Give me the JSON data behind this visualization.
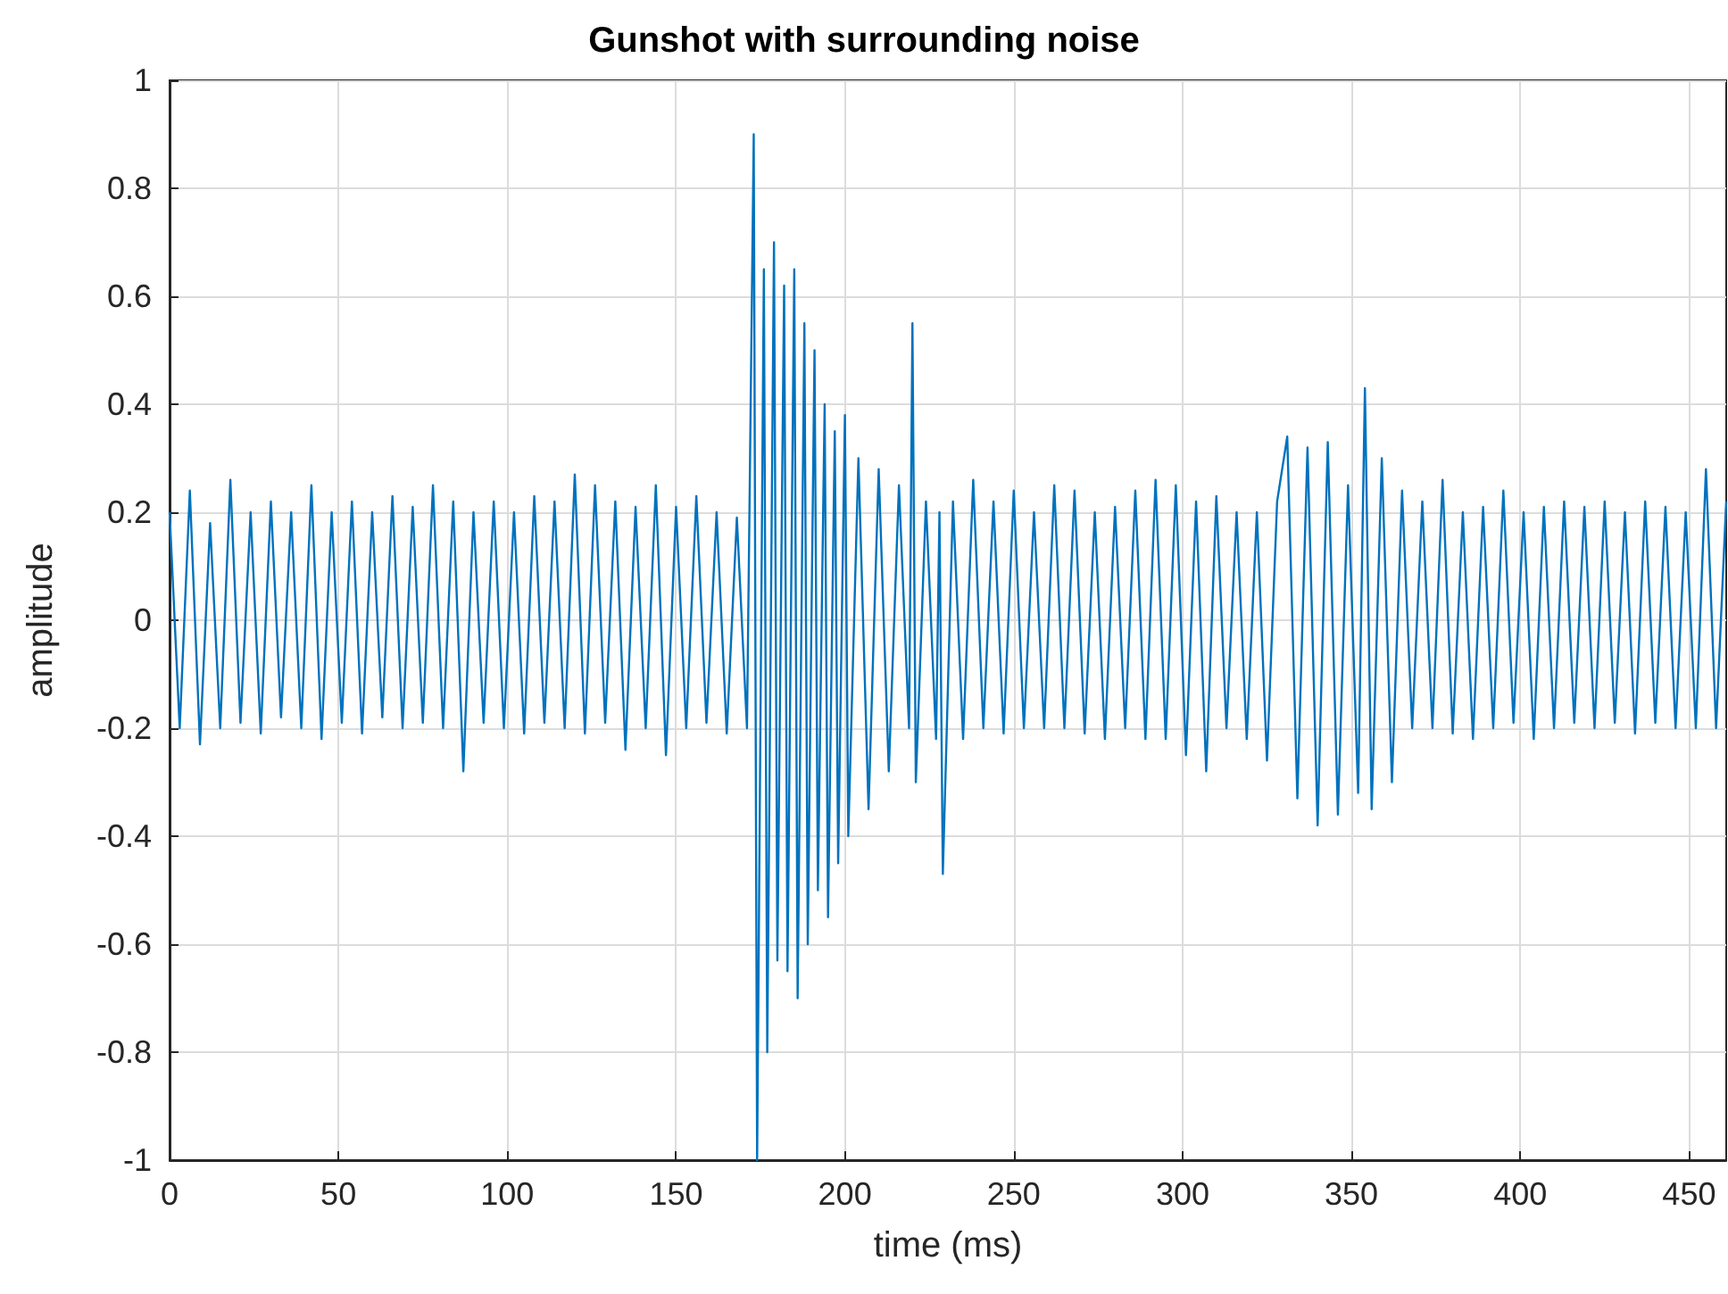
{
  "chart_data": {
    "type": "line",
    "title": "Gunshot with surrounding noise",
    "xlabel": "time (ms)",
    "ylabel": "amplitude",
    "xlim": [
      0,
      461
    ],
    "xticks": [
      0,
      50,
      100,
      150,
      200,
      250,
      300,
      350,
      400,
      450
    ],
    "ylim": [
      -1,
      1
    ],
    "yticks": [
      -1,
      -0.8,
      -0.6,
      -0.4,
      -0.2,
      0,
      0.2,
      0.4,
      0.6,
      0.8,
      1
    ],
    "grid": true,
    "series": [
      {
        "color": "#0072bd",
        "x": [
          0,
          3,
          6,
          9,
          12,
          15,
          18,
          21,
          24,
          27,
          30,
          33,
          36,
          39,
          42,
          45,
          48,
          51,
          54,
          57,
          60,
          63,
          66,
          69,
          72,
          75,
          78,
          81,
          84,
          87,
          90,
          93,
          96,
          99,
          102,
          105,
          108,
          111,
          114,
          117,
          120,
          123,
          126,
          129,
          132,
          135,
          138,
          141,
          144,
          147,
          150,
          153,
          156,
          159,
          162,
          165,
          168,
          171,
          173,
          174,
          176,
          177,
          179,
          180,
          182,
          183,
          185,
          186,
          188,
          189,
          191,
          192,
          194,
          195,
          197,
          198,
          200,
          201,
          204,
          207,
          210,
          213,
          216,
          219,
          220,
          221,
          224,
          227,
          228,
          229,
          232,
          235,
          238,
          241,
          244,
          247,
          250,
          253,
          256,
          259,
          262,
          265,
          268,
          271,
          274,
          277,
          280,
          283,
          286,
          289,
          292,
          295,
          298,
          301,
          304,
          307,
          310,
          313,
          316,
          319,
          322,
          325,
          328,
          331,
          334,
          337,
          340,
          343,
          346,
          349,
          352,
          354,
          356,
          359,
          362,
          365,
          368,
          371,
          374,
          377,
          380,
          383,
          386,
          389,
          392,
          395,
          398,
          401,
          404,
          407,
          410,
          413,
          416,
          419,
          422,
          425,
          428,
          431,
          434,
          437,
          440,
          443,
          446,
          449,
          452,
          455,
          458,
          461
        ],
        "values": [
          0.2,
          -0.2,
          0.24,
          -0.23,
          0.18,
          -0.2,
          0.26,
          -0.19,
          0.2,
          -0.21,
          0.22,
          -0.18,
          0.2,
          -0.2,
          0.25,
          -0.22,
          0.2,
          -0.19,
          0.22,
          -0.21,
          0.2,
          -0.18,
          0.23,
          -0.2,
          0.21,
          -0.19,
          0.25,
          -0.2,
          0.22,
          -0.28,
          0.2,
          -0.19,
          0.22,
          -0.2,
          0.2,
          -0.21,
          0.23,
          -0.19,
          0.22,
          -0.2,
          0.27,
          -0.21,
          0.25,
          -0.19,
          0.22,
          -0.24,
          0.21,
          -0.2,
          0.25,
          -0.25,
          0.21,
          -0.2,
          0.23,
          -0.19,
          0.2,
          -0.21,
          0.19,
          -0.2,
          0.9,
          -1.0,
          0.65,
          -0.8,
          0.7,
          -0.63,
          0.62,
          -0.65,
          0.65,
          -0.7,
          0.55,
          -0.6,
          0.5,
          -0.5,
          0.4,
          -0.55,
          0.35,
          -0.45,
          0.38,
          -0.4,
          0.3,
          -0.35,
          0.28,
          -0.28,
          0.25,
          -0.2,
          0.55,
          -0.3,
          0.22,
          -0.22,
          0.2,
          -0.47,
          0.22,
          -0.22,
          0.26,
          -0.2,
          0.22,
          -0.21,
          0.24,
          -0.2,
          0.2,
          -0.2,
          0.25,
          -0.2,
          0.24,
          -0.21,
          0.2,
          -0.22,
          0.21,
          -0.2,
          0.24,
          -0.22,
          0.26,
          -0.22,
          0.25,
          -0.25,
          0.22,
          -0.28,
          0.23,
          -0.2,
          0.2,
          -0.22,
          0.2,
          -0.26,
          0.22,
          0.34,
          -0.33,
          0.32,
          -0.38,
          0.33,
          -0.36,
          0.25,
          -0.32,
          0.43,
          -0.35,
          0.3,
          -0.3,
          0.24,
          -0.2,
          0.22,
          -0.2,
          0.26,
          -0.21,
          0.2,
          -0.22,
          0.21,
          -0.2,
          0.24,
          -0.19,
          0.2,
          -0.22,
          0.21,
          -0.2,
          0.22,
          -0.19,
          0.21,
          -0.2,
          0.22,
          -0.19,
          0.2,
          -0.21,
          0.22,
          -0.19,
          0.21,
          -0.2,
          0.2,
          -0.2,
          0.28,
          -0.2,
          0.22
        ]
      }
    ]
  }
}
